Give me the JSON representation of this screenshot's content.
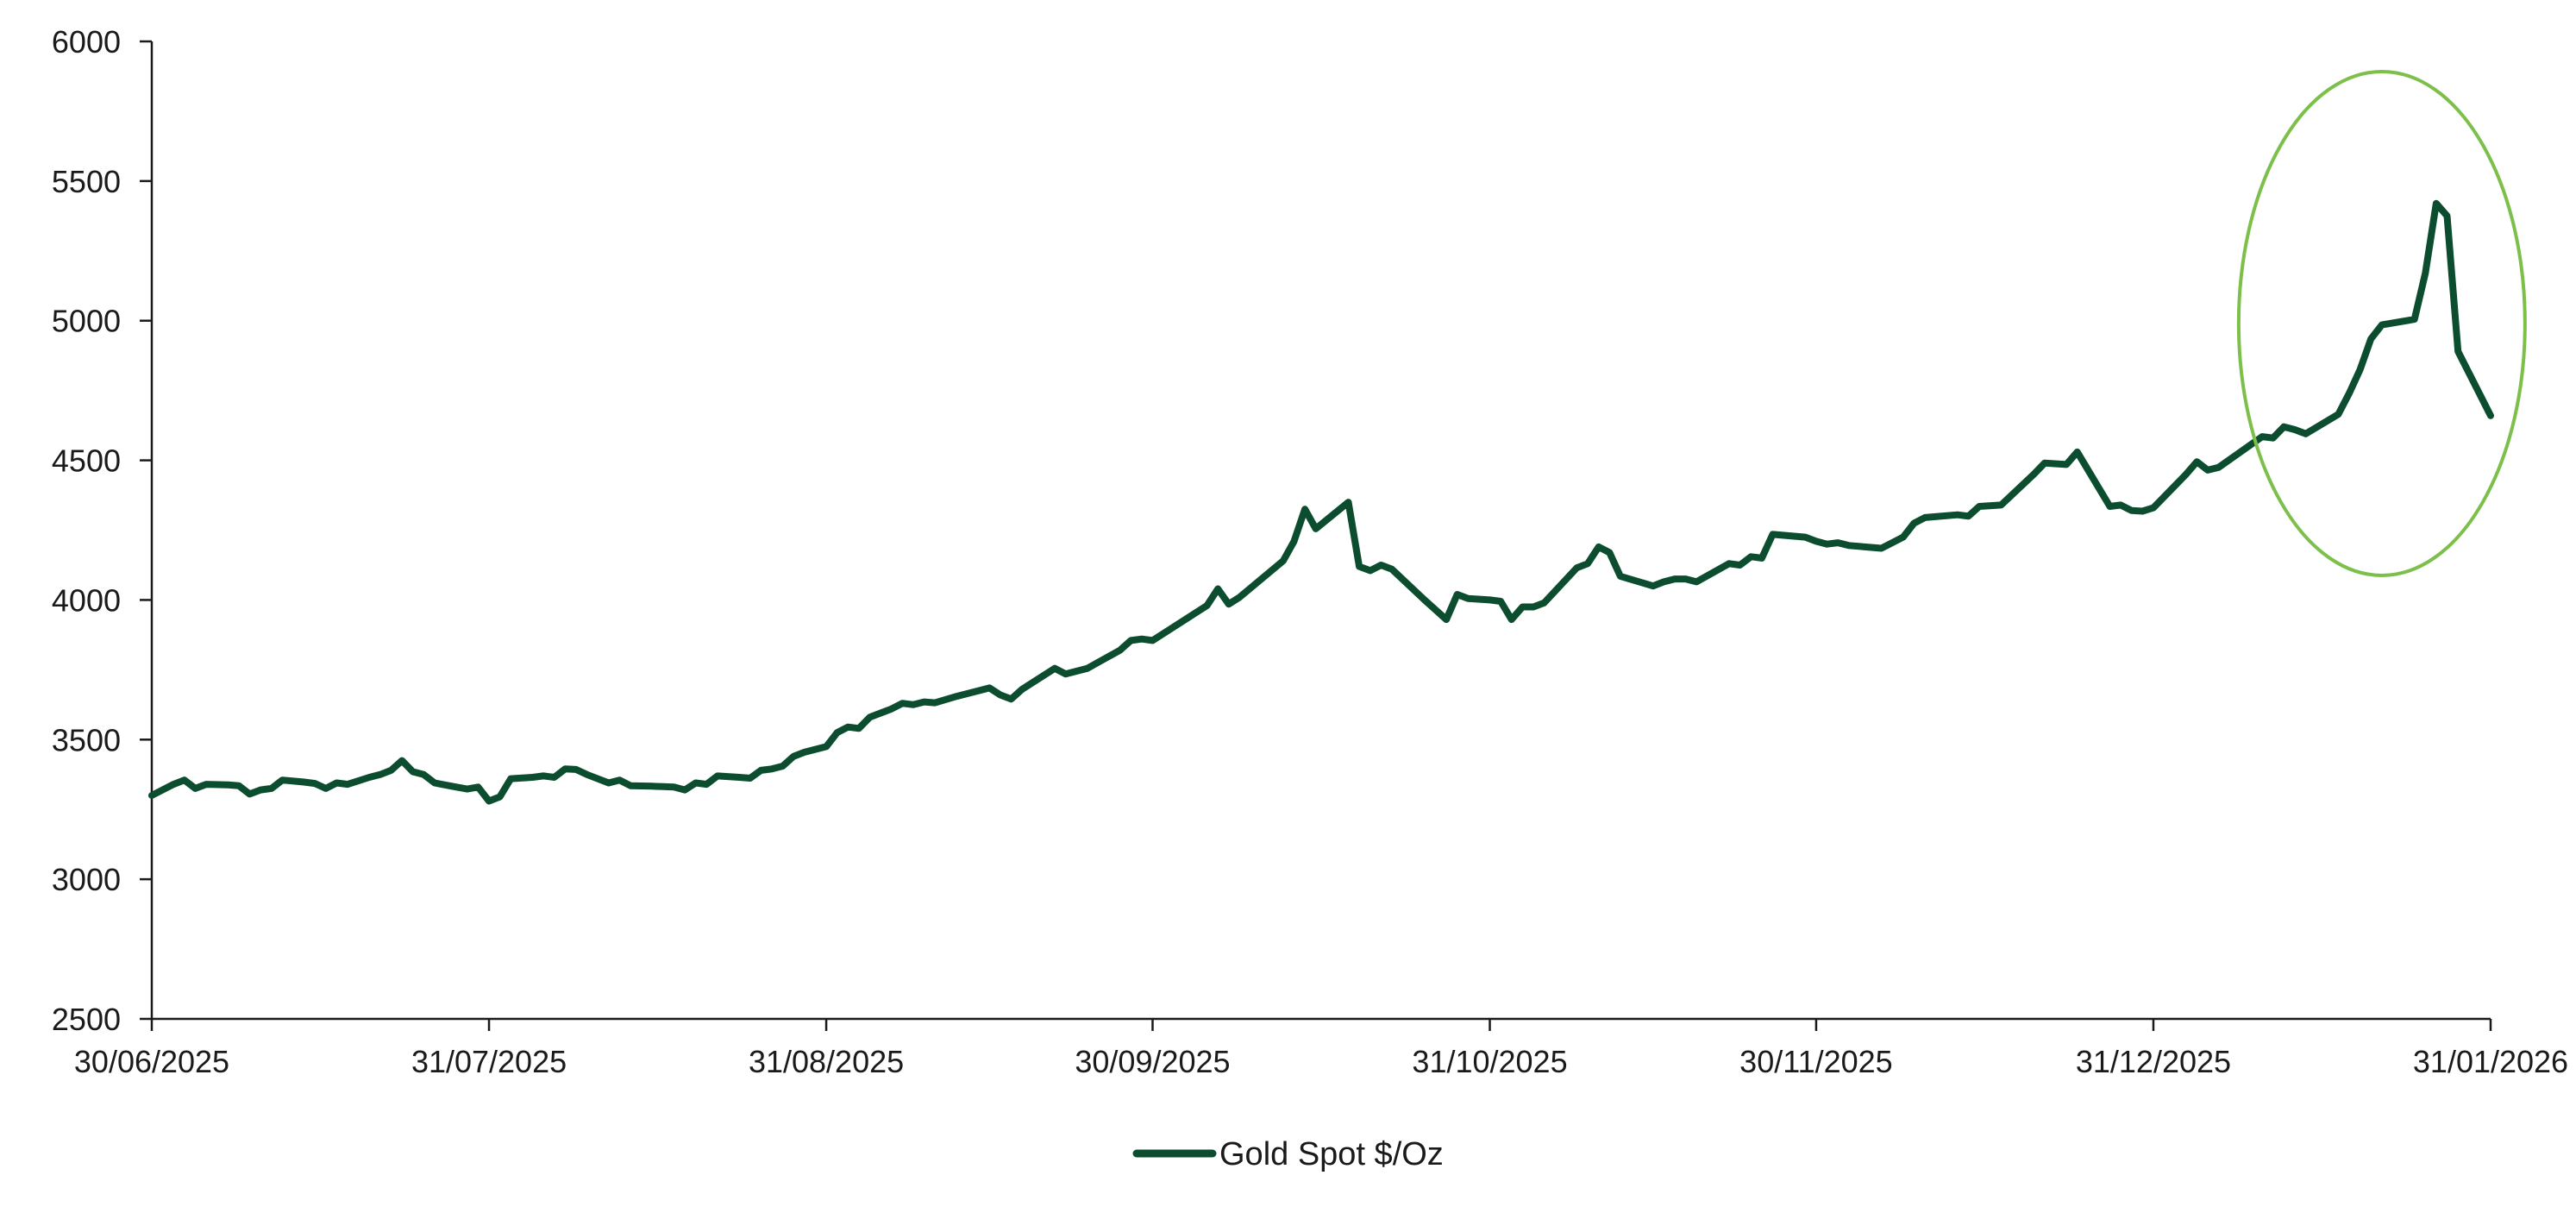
{
  "chart_data": {
    "type": "line",
    "title": "",
    "xlabel": "",
    "ylabel": "",
    "ylim": [
      2500,
      6000
    ],
    "y_ticks": [
      "2500",
      "3000",
      "3500",
      "4000",
      "4500",
      "5000",
      "5500",
      "6000"
    ],
    "x_ticks": [
      "30/06/2025",
      "31/07/2025",
      "31/08/2025",
      "30/09/2025",
      "31/10/2025",
      "30/11/2025",
      "31/12/2025",
      "31/01/2026"
    ],
    "legend_position": "bottom-center",
    "series": [
      {
        "name": "Gold Spot $/Oz",
        "color": "#0b4d2e",
        "points": [
          [
            0,
            3300
          ],
          [
            2,
            3340
          ],
          [
            3,
            3355
          ],
          [
            4,
            3325
          ],
          [
            5,
            3340
          ],
          [
            7,
            3338
          ],
          [
            8,
            3335
          ],
          [
            9,
            3305
          ],
          [
            10,
            3320
          ],
          [
            11,
            3325
          ],
          [
            12,
            3355
          ],
          [
            14,
            3348
          ],
          [
            15,
            3343
          ],
          [
            16,
            3325
          ],
          [
            17,
            3345
          ],
          [
            18,
            3340
          ],
          [
            20,
            3365
          ],
          [
            21,
            3375
          ],
          [
            22,
            3390
          ],
          [
            23,
            3425
          ],
          [
            24,
            3385
          ],
          [
            25,
            3375
          ],
          [
            26,
            3345
          ],
          [
            28,
            3330
          ],
          [
            29,
            3323
          ],
          [
            30,
            3330
          ],
          [
            31,
            3280
          ],
          [
            32,
            3295
          ],
          [
            33,
            3360
          ],
          [
            35,
            3365
          ],
          [
            36,
            3370
          ],
          [
            37,
            3365
          ],
          [
            38,
            3395
          ],
          [
            39,
            3393
          ],
          [
            40,
            3375
          ],
          [
            42,
            3345
          ],
          [
            43,
            3355
          ],
          [
            44,
            3335
          ],
          [
            46,
            3333
          ],
          [
            48,
            3330
          ],
          [
            49,
            3320
          ],
          [
            50,
            3345
          ],
          [
            51,
            3340
          ],
          [
            52,
            3370
          ],
          [
            54,
            3365
          ],
          [
            55,
            3362
          ],
          [
            56,
            3390
          ],
          [
            57,
            3395
          ],
          [
            58,
            3405
          ],
          [
            59,
            3440
          ],
          [
            60,
            3455
          ],
          [
            62,
            3475
          ],
          [
            63,
            3525
          ],
          [
            64,
            3545
          ],
          [
            65,
            3540
          ],
          [
            66,
            3580
          ],
          [
            67,
            3595
          ],
          [
            68,
            3610
          ],
          [
            69,
            3630
          ],
          [
            70,
            3625
          ],
          [
            71,
            3635
          ],
          [
            72,
            3632
          ],
          [
            74,
            3655
          ],
          [
            77,
            3685
          ],
          [
            78,
            3660
          ],
          [
            79,
            3645
          ],
          [
            80,
            3680
          ],
          [
            83,
            3755
          ],
          [
            84,
            3735
          ],
          [
            85,
            3745
          ],
          [
            86,
            3755
          ],
          [
            89,
            3820
          ],
          [
            90,
            3855
          ],
          [
            91,
            3860
          ],
          [
            92,
            3855
          ],
          [
            95,
            3930
          ],
          [
            97,
            3980
          ],
          [
            98,
            4040
          ],
          [
            99,
            3985
          ],
          [
            100,
            4010
          ],
          [
            104,
            4140
          ],
          [
            105,
            4210
          ],
          [
            106,
            4325
          ],
          [
            107,
            4255
          ],
          [
            110,
            4350
          ],
          [
            111,
            4120
          ],
          [
            112,
            4105
          ],
          [
            113,
            4125
          ],
          [
            114,
            4110
          ],
          [
            117,
            4000
          ],
          [
            119,
            3930
          ],
          [
            120,
            4020
          ],
          [
            121,
            4005
          ],
          [
            123,
            4000
          ],
          [
            124,
            3995
          ],
          [
            125,
            3930
          ],
          [
            126,
            3975
          ],
          [
            127,
            3975
          ],
          [
            128,
            3990
          ],
          [
            131,
            4115
          ],
          [
            132,
            4130
          ],
          [
            133,
            4190
          ],
          [
            134,
            4170
          ],
          [
            135,
            4085
          ],
          [
            138,
            4050
          ],
          [
            139,
            4065
          ],
          [
            140,
            4075
          ],
          [
            141,
            4075
          ],
          [
            142,
            4065
          ],
          [
            145,
            4130
          ],
          [
            146,
            4125
          ],
          [
            147,
            4155
          ],
          [
            148,
            4150
          ],
          [
            149,
            4235
          ],
          [
            152,
            4225
          ],
          [
            153,
            4210
          ],
          [
            154,
            4200
          ],
          [
            155,
            4205
          ],
          [
            156,
            4195
          ],
          [
            159,
            4185
          ],
          [
            161,
            4225
          ],
          [
            162,
            4275
          ],
          [
            163,
            4295
          ],
          [
            166,
            4305
          ],
          [
            167,
            4300
          ],
          [
            168,
            4335
          ],
          [
            170,
            4340
          ],
          [
            173,
            4450
          ],
          [
            174,
            4490
          ],
          [
            176,
            4485
          ],
          [
            177,
            4530
          ],
          [
            180,
            4335
          ],
          [
            181,
            4340
          ],
          [
            182,
            4320
          ],
          [
            183,
            4318
          ],
          [
            184,
            4330
          ],
          [
            187,
            4450
          ],
          [
            188,
            4495
          ],
          [
            189,
            4465
          ],
          [
            190,
            4475
          ],
          [
            194,
            4585
          ],
          [
            195,
            4580
          ],
          [
            196,
            4620
          ],
          [
            197,
            4610
          ],
          [
            198,
            4595
          ],
          [
            201,
            4665
          ],
          [
            202,
            4740
          ],
          [
            203,
            4825
          ],
          [
            204,
            4935
          ],
          [
            205,
            4985
          ],
          [
            208,
            5005
          ],
          [
            209,
            5170
          ],
          [
            210,
            5420
          ],
          [
            211,
            5375
          ],
          [
            212,
            4890
          ],
          [
            215,
            4660
          ]
        ]
      }
    ]
  }
}
